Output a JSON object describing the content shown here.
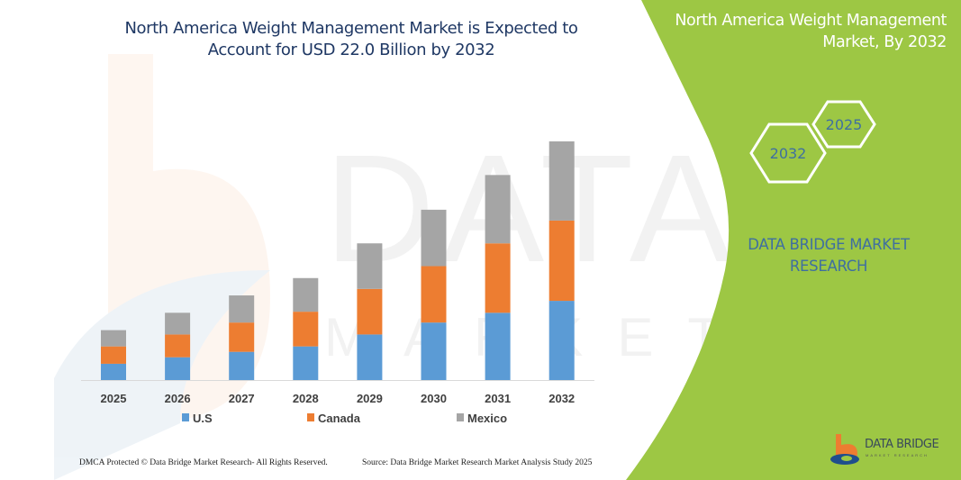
{
  "title": "North America Weight Management Market is Expected to Account for USD 22.0 Billion by 2032",
  "title_lines": [
    "North America Weight Management Market is Expected to",
    "Account for USD 22.0 Billion by 2032"
  ],
  "side_panel": {
    "title_lines": [
      "North America Weight Management",
      "Market, By 2032"
    ],
    "hex_labels": [
      "2032",
      "2025"
    ],
    "brand_lines": [
      "DATA BRIDGE MARKET",
      "RESEARCH"
    ],
    "logo_text": "DATA BRIDGE",
    "logo_sub": "MARKET RESEARCH",
    "color": "#9dc744"
  },
  "watermark": "DATA BRIDGE MARKET RESEARCH",
  "footer": {
    "left": "DMCA Protected © Data Bridge Market Research-  All Rights Reserved.",
    "right": "Source: Data Bridge Market Research  Market Analysis Study 2025"
  },
  "chart_data": {
    "type": "bar",
    "stacked": true,
    "title": "North America Weight Management Market is Expected to Account for USD 22.0 Billion by 2032",
    "categories": [
      "2025",
      "2026",
      "2027",
      "2028",
      "2029",
      "2030",
      "2031",
      "2032"
    ],
    "series": [
      {
        "name": "U.S",
        "color": "#5b9bd5",
        "values": [
          1.5,
          2.1,
          2.6,
          3.1,
          4.2,
          5.3,
          6.2,
          7.3
        ]
      },
      {
        "name": "Canada",
        "color": "#ed7d31",
        "values": [
          1.6,
          2.1,
          2.7,
          3.2,
          4.2,
          5.2,
          6.4,
          7.4
        ]
      },
      {
        "name": "Mexico",
        "color": "#a5a5a5",
        "values": [
          1.5,
          2.0,
          2.5,
          3.1,
          4.2,
          5.2,
          6.3,
          7.3
        ]
      }
    ],
    "xlabel": "",
    "ylabel": "",
    "ylim": [
      0,
      22.0
    ],
    "y_axis_shown": false,
    "grid": false,
    "legend": "bottom"
  }
}
